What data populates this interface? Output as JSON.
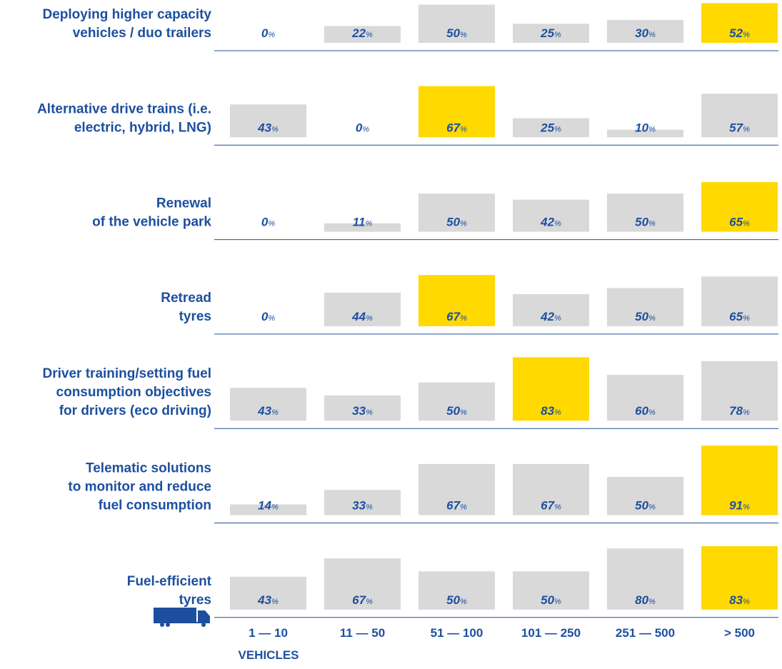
{
  "chart_data": {
    "type": "bar",
    "categories": [
      "1 — 10",
      "11 — 50",
      "51 — 100",
      "101 — 250",
      "251 — 500",
      "> 500"
    ],
    "x_axis_label": "VEHICLES",
    "color": "#d9d9d9",
    "highlight_color": "#ffd900",
    "ylim": [
      0,
      100
    ],
    "series": [
      {
        "name": [
          "Deploying higher capacity",
          "vehicles / duo trailers"
        ],
        "values": [
          0,
          22,
          50,
          25,
          30,
          52
        ],
        "value_labels": [
          "0%",
          "22%",
          "50%",
          "25%",
          "30%",
          "52%"
        ]
      },
      {
        "name": [
          "Alternative drive trains (i.e.",
          "electric, hybrid, LNG)"
        ],
        "values": [
          43,
          0,
          67,
          25,
          10,
          57
        ],
        "value_labels": [
          "43%",
          "0%",
          "67%",
          "25%",
          "10%",
          "57%"
        ]
      },
      {
        "name": [
          "Renewal",
          "of the vehicle park"
        ],
        "values": [
          0,
          11,
          50,
          42,
          50,
          65
        ],
        "value_labels": [
          "0%",
          "11%",
          "50%",
          "42%",
          "50%",
          "65%"
        ]
      },
      {
        "name": [
          "Retread",
          "tyres"
        ],
        "values": [
          0,
          44,
          67,
          42,
          50,
          65
        ],
        "value_labels": [
          "0%",
          "44%",
          "67%",
          "42%",
          "50%",
          "65%"
        ]
      },
      {
        "name": [
          "Driver training/setting fuel",
          "consumption objectives",
          "for drivers (eco driving)"
        ],
        "values": [
          43,
          33,
          50,
          83,
          60,
          78
        ],
        "value_labels": [
          "43%",
          "33%",
          "50%",
          "83%",
          "60%",
          "78%"
        ]
      },
      {
        "name": [
          "Telematic solutions",
          "to monitor and reduce",
          "fuel consumption"
        ],
        "values": [
          14,
          33,
          67,
          67,
          50,
          91
        ],
        "value_labels": [
          "14%",
          "33%",
          "67%",
          "67%",
          "50%",
          "91%"
        ]
      },
      {
        "name": [
          "Fuel-efficient",
          "tyres"
        ],
        "values": [
          43,
          67,
          50,
          50,
          80,
          83
        ],
        "value_labels": [
          "43%",
          "67%",
          "50%",
          "50%",
          "80%",
          "83%"
        ]
      }
    ]
  }
}
